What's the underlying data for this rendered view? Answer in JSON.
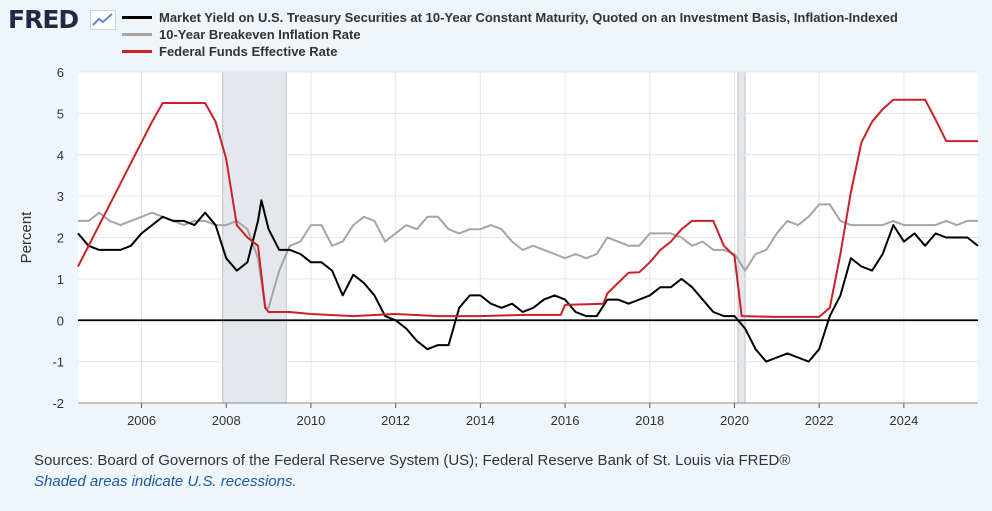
{
  "header": {
    "logo_text": "FRED",
    "logo_icon": "line-chart-icon"
  },
  "colors": {
    "background": "#eef5fb",
    "plot_bg": "#ffffff",
    "grid": "#e0e6ee",
    "recession": "#e4e8ec",
    "zero_line": "#000000"
  },
  "chart_data": {
    "type": "line",
    "title": "",
    "xlabel": "",
    "ylabel": "Percent",
    "xlim": [
      2004.5,
      2025.75
    ],
    "ylim": [
      -2,
      6
    ],
    "y_ticks": [
      -2,
      -1,
      0,
      1,
      2,
      3,
      4,
      5,
      6
    ],
    "y_tick_labels": [
      "-2",
      "-1",
      "0",
      "1",
      "2",
      "3",
      "4",
      "5",
      "6"
    ],
    "x_ticks": [
      2006,
      2008,
      2010,
      2012,
      2014,
      2016,
      2018,
      2020,
      2022,
      2024
    ],
    "x_tick_labels": [
      "2006",
      "2008",
      "2010",
      "2012",
      "2014",
      "2016",
      "2018",
      "2020",
      "2022",
      "2024"
    ],
    "grid": true,
    "recessions": [
      [
        2007.917,
        2009.417
      ],
      [
        2020.083,
        2020.25
      ]
    ],
    "series": [
      {
        "name": "Market Yield on U.S. Treasury Securities at 10-Year Constant Maturity, Quoted on an Investment Basis, Inflation-Indexed",
        "color": "#000000",
        "points": [
          [
            2004.5,
            2.1
          ],
          [
            2004.75,
            1.8
          ],
          [
            2005.0,
            1.7
          ],
          [
            2005.25,
            1.7
          ],
          [
            2005.5,
            1.7
          ],
          [
            2005.75,
            1.8
          ],
          [
            2006.0,
            2.1
          ],
          [
            2006.25,
            2.3
          ],
          [
            2006.5,
            2.5
          ],
          [
            2006.75,
            2.4
          ],
          [
            2007.0,
            2.4
          ],
          [
            2007.25,
            2.3
          ],
          [
            2007.5,
            2.6
          ],
          [
            2007.75,
            2.3
          ],
          [
            2008.0,
            1.5
          ],
          [
            2008.25,
            1.2
          ],
          [
            2008.5,
            1.4
          ],
          [
            2008.75,
            2.4
          ],
          [
            2008.83,
            2.9
          ],
          [
            2009.0,
            2.2
          ],
          [
            2009.25,
            1.7
          ],
          [
            2009.5,
            1.7
          ],
          [
            2009.75,
            1.6
          ],
          [
            2010.0,
            1.4
          ],
          [
            2010.25,
            1.4
          ],
          [
            2010.5,
            1.2
          ],
          [
            2010.75,
            0.6
          ],
          [
            2011.0,
            1.1
          ],
          [
            2011.25,
            0.9
          ],
          [
            2011.5,
            0.6
          ],
          [
            2011.75,
            0.1
          ],
          [
            2012.0,
            0.0
          ],
          [
            2012.25,
            -0.2
          ],
          [
            2012.5,
            -0.5
          ],
          [
            2012.75,
            -0.7
          ],
          [
            2013.0,
            -0.6
          ],
          [
            2013.25,
            -0.6
          ],
          [
            2013.5,
            0.3
          ],
          [
            2013.75,
            0.6
          ],
          [
            2014.0,
            0.6
          ],
          [
            2014.25,
            0.4
          ],
          [
            2014.5,
            0.3
          ],
          [
            2014.75,
            0.4
          ],
          [
            2015.0,
            0.2
          ],
          [
            2015.25,
            0.3
          ],
          [
            2015.5,
            0.5
          ],
          [
            2015.75,
            0.6
          ],
          [
            2016.0,
            0.5
          ],
          [
            2016.25,
            0.2
          ],
          [
            2016.5,
            0.1
          ],
          [
            2016.75,
            0.1
          ],
          [
            2017.0,
            0.5
          ],
          [
            2017.25,
            0.5
          ],
          [
            2017.5,
            0.4
          ],
          [
            2017.75,
            0.5
          ],
          [
            2018.0,
            0.6
          ],
          [
            2018.25,
            0.8
          ],
          [
            2018.5,
            0.8
          ],
          [
            2018.75,
            1.0
          ],
          [
            2019.0,
            0.8
          ],
          [
            2019.25,
            0.5
          ],
          [
            2019.5,
            0.2
          ],
          [
            2019.75,
            0.1
          ],
          [
            2020.0,
            0.1
          ],
          [
            2020.25,
            -0.2
          ],
          [
            2020.5,
            -0.7
          ],
          [
            2020.75,
            -1.0
          ],
          [
            2021.0,
            -0.9
          ],
          [
            2021.25,
            -0.8
          ],
          [
            2021.5,
            -0.9
          ],
          [
            2021.75,
            -1.0
          ],
          [
            2022.0,
            -0.7
          ],
          [
            2022.25,
            0.1
          ],
          [
            2022.5,
            0.6
          ],
          [
            2022.75,
            1.5
          ],
          [
            2023.0,
            1.3
          ],
          [
            2023.25,
            1.2
          ],
          [
            2023.5,
            1.6
          ],
          [
            2023.75,
            2.3
          ],
          [
            2024.0,
            1.9
          ],
          [
            2024.25,
            2.1
          ],
          [
            2024.5,
            1.8
          ],
          [
            2024.75,
            2.1
          ],
          [
            2025.0,
            2.0
          ],
          [
            2025.25,
            2.0
          ],
          [
            2025.5,
            2.0
          ],
          [
            2025.75,
            1.8
          ]
        ]
      },
      {
        "name": "10-Year Breakeven Inflation Rate",
        "color": "#a5a5a5",
        "points": [
          [
            2004.5,
            2.4
          ],
          [
            2004.75,
            2.4
          ],
          [
            2005.0,
            2.6
          ],
          [
            2005.25,
            2.4
          ],
          [
            2005.5,
            2.3
          ],
          [
            2005.75,
            2.4
          ],
          [
            2006.0,
            2.5
          ],
          [
            2006.25,
            2.6
          ],
          [
            2006.5,
            2.5
          ],
          [
            2006.75,
            2.4
          ],
          [
            2007.0,
            2.3
          ],
          [
            2007.25,
            2.4
          ],
          [
            2007.5,
            2.4
          ],
          [
            2007.75,
            2.3
          ],
          [
            2008.0,
            2.3
          ],
          [
            2008.25,
            2.4
          ],
          [
            2008.5,
            2.2
          ],
          [
            2008.75,
            1.5
          ],
          [
            2008.92,
            0.3
          ],
          [
            2009.0,
            0.3
          ],
          [
            2009.25,
            1.2
          ],
          [
            2009.5,
            1.8
          ],
          [
            2009.75,
            1.9
          ],
          [
            2010.0,
            2.3
          ],
          [
            2010.25,
            2.3
          ],
          [
            2010.5,
            1.8
          ],
          [
            2010.75,
            1.9
          ],
          [
            2011.0,
            2.3
          ],
          [
            2011.25,
            2.5
          ],
          [
            2011.5,
            2.4
          ],
          [
            2011.75,
            1.9
          ],
          [
            2012.0,
            2.1
          ],
          [
            2012.25,
            2.3
          ],
          [
            2012.5,
            2.2
          ],
          [
            2012.75,
            2.5
          ],
          [
            2013.0,
            2.5
          ],
          [
            2013.25,
            2.2
          ],
          [
            2013.5,
            2.1
          ],
          [
            2013.75,
            2.2
          ],
          [
            2014.0,
            2.2
          ],
          [
            2014.25,
            2.3
          ],
          [
            2014.5,
            2.2
          ],
          [
            2014.75,
            1.9
          ],
          [
            2015.0,
            1.7
          ],
          [
            2015.25,
            1.8
          ],
          [
            2015.5,
            1.7
          ],
          [
            2015.75,
            1.6
          ],
          [
            2016.0,
            1.5
          ],
          [
            2016.25,
            1.6
          ],
          [
            2016.5,
            1.5
          ],
          [
            2016.75,
            1.6
          ],
          [
            2017.0,
            2.0
          ],
          [
            2017.25,
            1.9
          ],
          [
            2017.5,
            1.8
          ],
          [
            2017.75,
            1.8
          ],
          [
            2018.0,
            2.1
          ],
          [
            2018.25,
            2.1
          ],
          [
            2018.5,
            2.1
          ],
          [
            2018.75,
            2.0
          ],
          [
            2019.0,
            1.8
          ],
          [
            2019.25,
            1.9
          ],
          [
            2019.5,
            1.7
          ],
          [
            2019.75,
            1.7
          ],
          [
            2020.0,
            1.6
          ],
          [
            2020.25,
            1.2
          ],
          [
            2020.5,
            1.6
          ],
          [
            2020.75,
            1.7
          ],
          [
            2021.0,
            2.1
          ],
          [
            2021.25,
            2.4
          ],
          [
            2021.5,
            2.3
          ],
          [
            2021.75,
            2.5
          ],
          [
            2022.0,
            2.8
          ],
          [
            2022.25,
            2.8
          ],
          [
            2022.5,
            2.4
          ],
          [
            2022.75,
            2.3
          ],
          [
            2023.0,
            2.3
          ],
          [
            2023.25,
            2.3
          ],
          [
            2023.5,
            2.3
          ],
          [
            2023.75,
            2.4
          ],
          [
            2024.0,
            2.3
          ],
          [
            2024.25,
            2.3
          ],
          [
            2024.5,
            2.3
          ],
          [
            2024.75,
            2.3
          ],
          [
            2025.0,
            2.4
          ],
          [
            2025.25,
            2.3
          ],
          [
            2025.5,
            2.4
          ],
          [
            2025.75,
            2.4
          ]
        ]
      },
      {
        "name": "Federal Funds Effective Rate",
        "color": "#cc2027",
        "points": [
          [
            2004.5,
            1.3
          ],
          [
            2004.75,
            1.8
          ],
          [
            2005.0,
            2.3
          ],
          [
            2005.25,
            2.8
          ],
          [
            2005.5,
            3.3
          ],
          [
            2005.75,
            3.8
          ],
          [
            2006.0,
            4.3
          ],
          [
            2006.25,
            4.8
          ],
          [
            2006.5,
            5.25
          ],
          [
            2007.0,
            5.25
          ],
          [
            2007.5,
            5.25
          ],
          [
            2007.75,
            4.8
          ],
          [
            2008.0,
            3.9
          ],
          [
            2008.25,
            2.3
          ],
          [
            2008.5,
            2.0
          ],
          [
            2008.75,
            1.8
          ],
          [
            2008.92,
            0.3
          ],
          [
            2009.0,
            0.2
          ],
          [
            2009.5,
            0.2
          ],
          [
            2010.0,
            0.15
          ],
          [
            2011.0,
            0.1
          ],
          [
            2012.0,
            0.15
          ],
          [
            2013.0,
            0.1
          ],
          [
            2014.0,
            0.1
          ],
          [
            2015.0,
            0.13
          ],
          [
            2015.9,
            0.13
          ],
          [
            2016.0,
            0.37
          ],
          [
            2016.9,
            0.4
          ],
          [
            2017.0,
            0.65
          ],
          [
            2017.25,
            0.9
          ],
          [
            2017.5,
            1.15
          ],
          [
            2017.75,
            1.16
          ],
          [
            2018.0,
            1.4
          ],
          [
            2018.25,
            1.7
          ],
          [
            2018.5,
            1.9
          ],
          [
            2018.75,
            2.2
          ],
          [
            2019.0,
            2.4
          ],
          [
            2019.5,
            2.4
          ],
          [
            2019.75,
            1.8
          ],
          [
            2020.0,
            1.55
          ],
          [
            2020.17,
            0.1
          ],
          [
            2021.0,
            0.08
          ],
          [
            2022.0,
            0.08
          ],
          [
            2022.25,
            0.3
          ],
          [
            2022.5,
            1.6
          ],
          [
            2022.75,
            3.1
          ],
          [
            2023.0,
            4.3
          ],
          [
            2023.25,
            4.8
          ],
          [
            2023.5,
            5.1
          ],
          [
            2023.75,
            5.33
          ],
          [
            2024.0,
            5.33
          ],
          [
            2024.5,
            5.33
          ],
          [
            2024.75,
            4.85
          ],
          [
            2025.0,
            4.33
          ],
          [
            2025.75,
            4.33
          ]
        ]
      }
    ]
  },
  "footer": {
    "sources": "Sources: Board of Governors of the Federal Reserve System (US); Federal Reserve Bank of St. Louis via FRED®",
    "recession_note": "Shaded areas indicate U.S. recessions."
  }
}
